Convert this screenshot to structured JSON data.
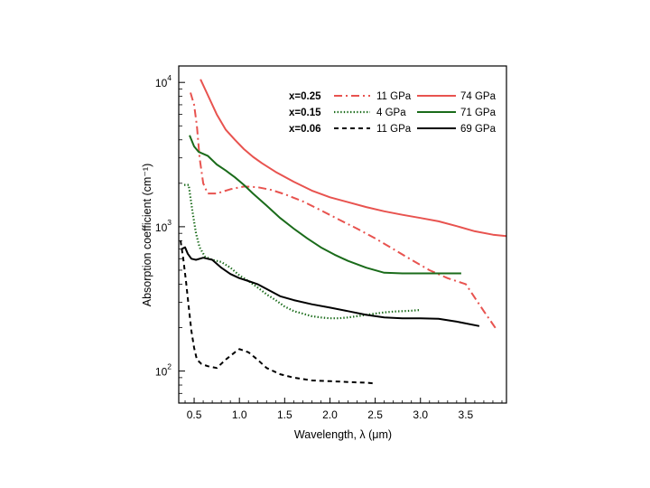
{
  "chart_data": {
    "type": "line",
    "title": "",
    "xlabel": "Wavelength, λ (μm)",
    "ylabel": "Absorption coefficient (cm⁻¹)",
    "xscale": "linear",
    "yscale": "log",
    "xlim": [
      0.33,
      3.95
    ],
    "ylim": [
      60,
      13000
    ],
    "xticks": [
      0.5,
      1.0,
      1.5,
      2.0,
      2.5,
      3.0,
      3.5
    ],
    "xtick_labels": [
      "0.5",
      "1.0",
      "1.5",
      "2.0",
      "2.5",
      "3.0",
      "3.5"
    ],
    "ytick_decades": [
      {
        "base": "10",
        "exp": "2",
        "value": 100
      },
      {
        "base": "10",
        "exp": "3",
        "value": 1000
      },
      {
        "base": "10",
        "exp": "4",
        "value": 10000
      }
    ],
    "legend": {
      "placement": "top-right",
      "rows": [
        {
          "composition": "x=0.25",
          "color": "#e8534f",
          "low_label": "11 GPa",
          "high_label": "74 GPa"
        },
        {
          "composition": "x=0.15",
          "color": "#1a6b1a",
          "low_label": "4 GPa",
          "high_label": "71 GPa"
        },
        {
          "composition": "x=0.06",
          "color": "#000000",
          "low_label": "11 GPa",
          "high_label": "69 GPa"
        }
      ]
    },
    "series": [
      {
        "name": "x=0.25 74 GPa",
        "color": "#e8534f",
        "style": "solid",
        "x": [
          0.57,
          0.65,
          0.75,
          0.85,
          0.95,
          1.05,
          1.15,
          1.25,
          1.4,
          1.6,
          1.8,
          2.0,
          2.2,
          2.4,
          2.6,
          2.8,
          3.0,
          3.2,
          3.4,
          3.6,
          3.8,
          3.95
        ],
        "y": [
          10500,
          8200,
          6000,
          4700,
          4000,
          3450,
          3050,
          2750,
          2400,
          2050,
          1780,
          1600,
          1480,
          1370,
          1280,
          1210,
          1150,
          1090,
          1010,
          930,
          880,
          860
        ]
      },
      {
        "name": "x=0.25 11 GPa",
        "color": "#e8534f",
        "style": "dashdot",
        "x": [
          0.46,
          0.5,
          0.53,
          0.56,
          0.6,
          0.65,
          0.75,
          0.9,
          1.05,
          1.2,
          1.35,
          1.5,
          1.7,
          1.9,
          2.1,
          2.3,
          2.5,
          2.7,
          2.9,
          3.1,
          3.3,
          3.5,
          3.7,
          3.85
        ],
        "y": [
          8500,
          7000,
          5000,
          3000,
          2000,
          1700,
          1700,
          1820,
          1900,
          1880,
          1800,
          1680,
          1500,
          1300,
          1120,
          970,
          830,
          700,
          590,
          500,
          440,
          400,
          260,
          190
        ]
      },
      {
        "name": "x=0.15 71 GPa",
        "color": "#1a6b1a",
        "style": "solid",
        "x": [
          0.45,
          0.5,
          0.55,
          0.65,
          0.75,
          0.85,
          0.95,
          1.05,
          1.15,
          1.3,
          1.45,
          1.6,
          1.75,
          1.9,
          2.05,
          2.2,
          2.4,
          2.6,
          2.8,
          3.0,
          3.2,
          3.45
        ],
        "y": [
          4300,
          3600,
          3300,
          3100,
          2700,
          2450,
          2200,
          1950,
          1700,
          1400,
          1150,
          970,
          830,
          720,
          640,
          580,
          520,
          480,
          475,
          475,
          475,
          475
        ]
      },
      {
        "name": "x=0.15 4 GPa",
        "color": "#1a6b1a",
        "style": "dotted",
        "x": [
          0.39,
          0.44,
          0.48,
          0.52,
          0.56,
          0.62,
          0.7,
          0.8,
          0.9,
          1.0,
          1.1,
          1.2,
          1.3,
          1.4,
          1.5,
          1.6,
          1.7,
          1.8,
          1.9,
          2.0,
          2.1,
          2.2,
          2.3,
          2.4,
          2.5,
          2.6,
          2.7,
          2.8,
          2.9,
          3.0
        ],
        "y": [
          1950,
          1950,
          1300,
          900,
          720,
          620,
          590,
          570,
          520,
          460,
          420,
          380,
          340,
          310,
          280,
          260,
          250,
          240,
          235,
          232,
          232,
          235,
          240,
          245,
          250,
          255,
          258,
          260,
          262,
          265
        ]
      },
      {
        "name": "x=0.06 69 GPa",
        "color": "#000000",
        "style": "solid",
        "x": [
          0.36,
          0.4,
          0.43,
          0.47,
          0.52,
          0.6,
          0.7,
          0.8,
          0.9,
          1.0,
          1.1,
          1.2,
          1.3,
          1.45,
          1.6,
          1.8,
          2.0,
          2.2,
          2.4,
          2.6,
          2.8,
          3.0,
          3.2,
          3.4,
          3.65
        ],
        "y": [
          700,
          720,
          650,
          600,
          590,
          610,
          590,
          520,
          470,
          440,
          420,
          400,
          370,
          330,
          310,
          290,
          275,
          260,
          245,
          235,
          232,
          232,
          230,
          220,
          205
        ]
      },
      {
        "name": "x=0.06 11 GPa",
        "color": "#000000",
        "style": "dashed",
        "x": [
          0.35,
          0.38,
          0.41,
          0.44,
          0.47,
          0.5,
          0.53,
          0.58,
          0.65,
          0.75,
          0.85,
          0.95,
          1.0,
          1.1,
          1.2,
          1.3,
          1.45,
          1.6,
          1.8,
          2.0,
          2.2,
          2.4,
          2.5
        ],
        "y": [
          800,
          600,
          420,
          280,
          190,
          145,
          120,
          112,
          108,
          105,
          120,
          135,
          142,
          135,
          120,
          105,
          95,
          90,
          86,
          85,
          84,
          83,
          82
        ]
      }
    ]
  }
}
